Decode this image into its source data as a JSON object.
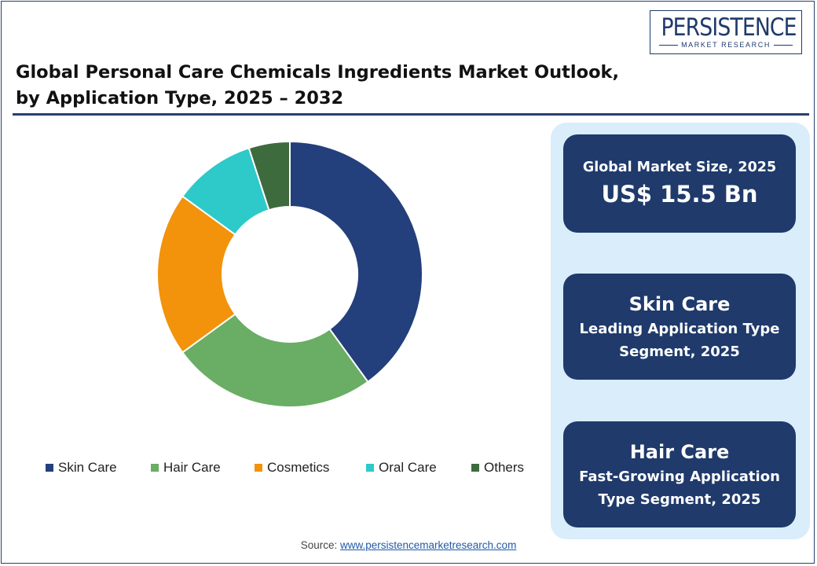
{
  "header": {
    "title_line1": "Global Personal Care Chemicals Ingredients Market Outlook,",
    "title_line2": "by Application Type, 2025 – 2032"
  },
  "logo": {
    "name": "PERSISTENCE",
    "tagline": "MARKET RESEARCH"
  },
  "chart_data": {
    "type": "pie",
    "donut": true,
    "categories": [
      "Skin Care",
      "Hair Care",
      "Cosmetics",
      "Oral Care",
      "Others"
    ],
    "values": [
      40,
      25,
      20,
      10,
      5
    ],
    "colors": [
      "#233f7c",
      "#6aad64",
      "#f3920b",
      "#2ec9c9",
      "#3e6b3e"
    ],
    "legend_position": "bottom"
  },
  "cards": {
    "market_size_label": "Global Market Size, 2025",
    "market_size_value": "US$ 15.5 Bn",
    "leading_title": "Skin Care",
    "leading_sub1": "Leading Application Type",
    "leading_sub2": "Segment, 2025",
    "growing_title": "Hair Care",
    "growing_sub1": "Fast-Growing Application",
    "growing_sub2": "Type Segment, 2025"
  },
  "source": {
    "label": "Source:",
    "link": "www.persistencemarketresearch.com"
  }
}
